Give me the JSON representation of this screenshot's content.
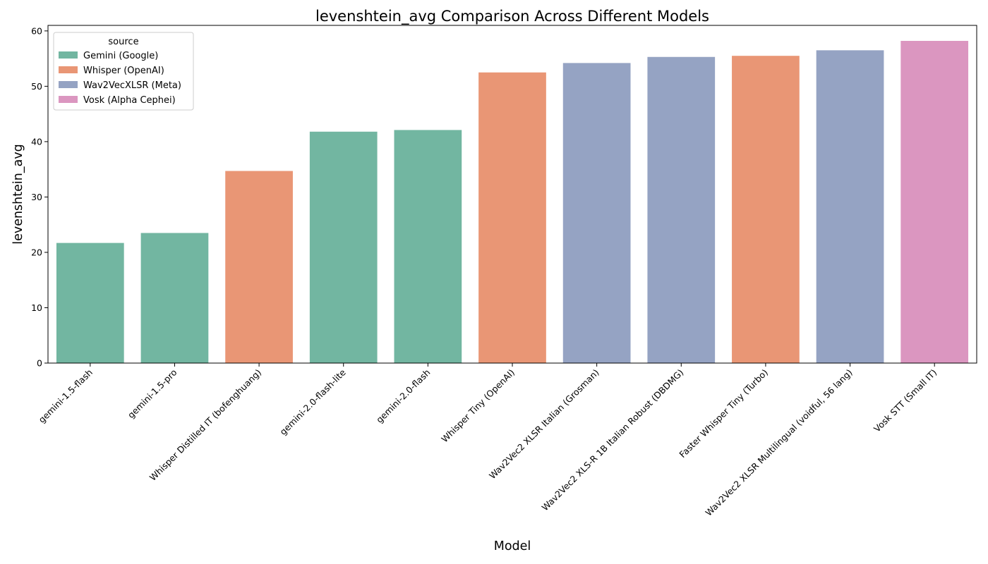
{
  "chart_data": {
    "type": "bar",
    "title": "levenshtein_avg Comparison Across Different Models",
    "xlabel": "Model",
    "ylabel": "levenshtein_avg",
    "ylim": [
      0,
      61
    ],
    "yticks": [
      0,
      10,
      20,
      30,
      40,
      50,
      60
    ],
    "grid": false,
    "legend": {
      "title": "source",
      "placement": "top-left",
      "entries": [
        {
          "name": "Gemini (Google)",
          "color": "#72b6a1"
        },
        {
          "name": "Whisper (OpenAI)",
          "color": "#e99675"
        },
        {
          "name": "Wav2VecXLSR (Meta)",
          "color": "#95a3c3"
        },
        {
          "name": "Vosk (Alpha Cephei)",
          "color": "#db96c0"
        }
      ]
    },
    "categories": [
      "gemini-1.5-flash",
      "gemini-1.5-pro",
      "Whisper Distilled IT (bofenghuang)",
      "gemini-2.0-flash-lite",
      "gemini-2.0-flash",
      "Whisper Tiny (OpenAI)",
      "Wav2Vec2 XLSR Italian (Grosman)",
      "Wav2Vec2 XLS-R 1B Italian Robust (DBDMG)",
      "Faster Whisper Tiny (Turbo)",
      "Wav2Vec2 XLSR Multilingual (voidful, 56 lang)",
      "Vosk STT (Small IT)"
    ],
    "values": [
      21.7,
      23.5,
      34.7,
      41.8,
      42.1,
      52.5,
      54.2,
      55.3,
      55.5,
      56.5,
      58.2
    ],
    "sources": [
      "Gemini (Google)",
      "Gemini (Google)",
      "Whisper (OpenAI)",
      "Gemini (Google)",
      "Gemini (Google)",
      "Whisper (OpenAI)",
      "Wav2VecXLSR (Meta)",
      "Wav2VecXLSR (Meta)",
      "Whisper (OpenAI)",
      "Wav2VecXLSR (Meta)",
      "Vosk (Alpha Cephei)"
    ]
  }
}
